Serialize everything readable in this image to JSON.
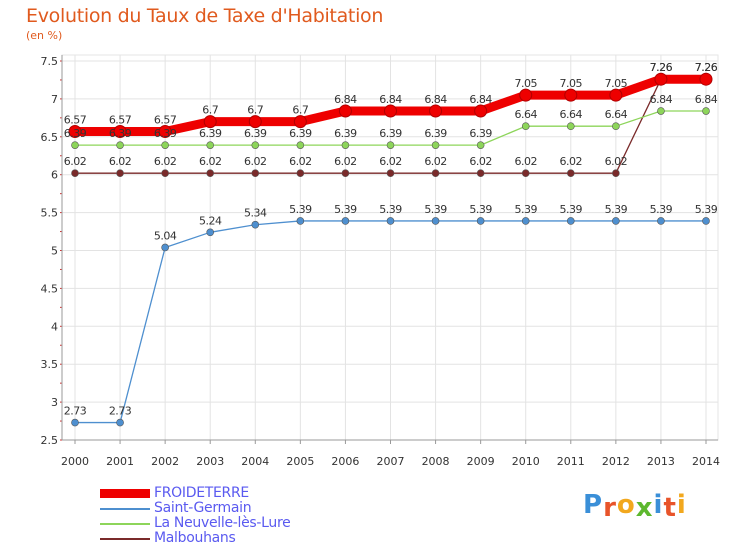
{
  "title": "Evolution du Taux de Taxe d'Habitation",
  "subtitle": "(en %)",
  "logo": {
    "text": "Proxiti",
    "letter_colors": [
      "#3a8fd8",
      "#e8542a",
      "#f2a81e",
      "#5db82e",
      "#3a8fd8",
      "#e8542a",
      "#f2a81e"
    ]
  },
  "chart_data": {
    "type": "line",
    "x": [
      "2000",
      "2001",
      "2002",
      "2003",
      "2004",
      "2005",
      "2006",
      "2007",
      "2008",
      "2009",
      "2010",
      "2011",
      "2012",
      "2013",
      "2014"
    ],
    "ylim": [
      2.5,
      7.5
    ],
    "yticks": [
      "2.5",
      "3",
      "3.5",
      "4",
      "4.5",
      "5",
      "5.5",
      "6",
      "6.5",
      "7",
      "7.5"
    ],
    "grid": true,
    "legend_position": "bottom-left",
    "series": [
      {
        "name": "FROIDETERRE",
        "color": "#ee0000",
        "values": [
          6.57,
          6.57,
          6.57,
          6.7,
          6.7,
          6.7,
          6.84,
          6.84,
          6.84,
          6.84,
          7.05,
          7.05,
          7.05,
          7.26,
          7.26
        ],
        "labels": [
          "6.57",
          "6.57",
          "6.57",
          "6.7",
          "6.7",
          "6.7",
          "6.84",
          "6.84",
          "6.84",
          "6.84",
          "7.05",
          "7.05",
          "7.05",
          "7.26",
          "7.26"
        ]
      },
      {
        "name": "Saint-Germain",
        "color": "#4e8fcf",
        "values": [
          2.73,
          2.73,
          5.04,
          5.24,
          5.34,
          5.39,
          5.39,
          5.39,
          5.39,
          5.39,
          5.39,
          5.39,
          5.39,
          5.39,
          5.39
        ],
        "labels": [
          "2.73",
          "2.73",
          "5.04",
          "5.24",
          "5.34",
          "5.39",
          "5.39",
          "5.39",
          "5.39",
          "5.39",
          "5.39",
          "5.39",
          "5.39",
          "5.39",
          "5.39"
        ]
      },
      {
        "name": "La Neuvelle-lès-Lure",
        "color": "#8dd55a",
        "values": [
          6.39,
          6.39,
          6.39,
          6.39,
          6.39,
          6.39,
          6.39,
          6.39,
          6.39,
          6.39,
          6.64,
          6.64,
          6.64,
          6.84,
          6.84
        ],
        "labels": [
          "6.39",
          "6.39",
          "6.39",
          "6.39",
          "6.39",
          "6.39",
          "6.39",
          "6.39",
          "6.39",
          "6.39",
          "6.64",
          "6.64",
          "6.64",
          "6.84",
          "6.84"
        ]
      },
      {
        "name": "Malbouhans",
        "color": "#7a2a2a",
        "values": [
          6.02,
          6.02,
          6.02,
          6.02,
          6.02,
          6.02,
          6.02,
          6.02,
          6.02,
          6.02,
          6.02,
          6.02,
          6.02,
          7.26,
          7.26
        ],
        "labels": [
          "6.02",
          "6.02",
          "6.02",
          "6.02",
          "6.02",
          "6.02",
          "6.02",
          "6.02",
          "6.02",
          "6.02",
          "6.02",
          "6.02",
          "6.02",
          "7.26",
          "7.26"
        ]
      }
    ]
  }
}
